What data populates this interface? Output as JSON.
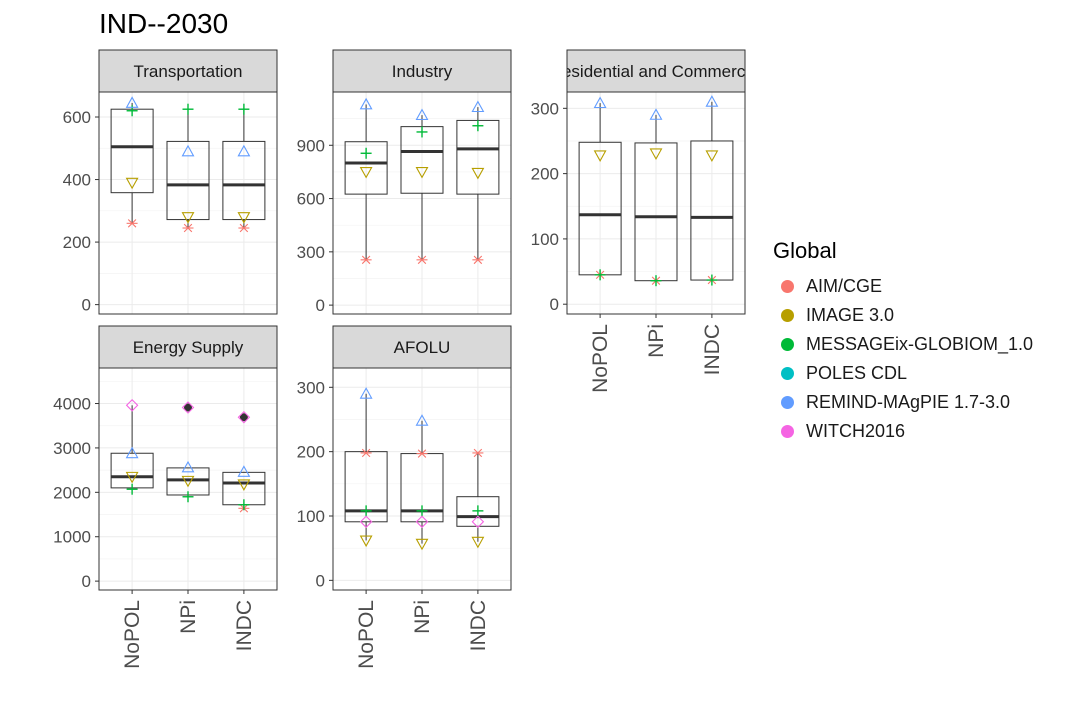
{
  "title": "IND--2030",
  "legend": {
    "title": "Global",
    "items": [
      {
        "label": "AIM/CGE",
        "color": "#F8766D",
        "shape": "asterisk"
      },
      {
        "label": "IMAGE 3.0",
        "color": "#B79F00",
        "shape": "triangle-down"
      },
      {
        "label": "MESSAGEix-GLOBIOM_1.0",
        "color": "#00BA38",
        "shape": "plus"
      },
      {
        "label": "POLES CDL",
        "color": "#00BFC4",
        "shape": "square"
      },
      {
        "label": "REMIND-MAgPIE 1.7-3.0",
        "color": "#619CFF",
        "shape": "triangle-up"
      },
      {
        "label": "WITCH2016",
        "color": "#F564E3",
        "shape": "diamond"
      }
    ]
  },
  "chart_data": [
    {
      "type": "box",
      "title": "Transportation",
      "categories": [
        "NoPOL",
        "NPi",
        "INDC"
      ],
      "ylim": [
        -30,
        680
      ],
      "yticks": [
        0,
        200,
        400,
        600
      ],
      "boxes": [
        {
          "lower": 260,
          "q1": 358,
          "median": 505,
          "q3": 625,
          "upper": 645
        },
        {
          "lower": 245,
          "q1": 272,
          "median": 383,
          "q3": 522,
          "upper": 625
        },
        {
          "lower": 245,
          "q1": 272,
          "median": 383,
          "q3": 522,
          "upper": 625
        }
      ],
      "points": [
        {
          "model": "AIM/CGE",
          "values": [
            260,
            245,
            245
          ]
        },
        {
          "model": "IMAGE 3.0",
          "values": [
            390,
            280,
            280
          ]
        },
        {
          "model": "MESSAGEix-GLOBIOM_1.0",
          "values": [
            620,
            625,
            625
          ]
        },
        {
          "model": "REMIND-MAgPIE 1.7-3.0",
          "values": [
            645,
            490,
            490
          ]
        }
      ]
    },
    {
      "type": "box",
      "title": "Industry",
      "categories": [
        "NoPOL",
        "NPi",
        "INDC"
      ],
      "ylim": [
        -50,
        1200
      ],
      "yticks": [
        0,
        300,
        600,
        900
      ],
      "boxes": [
        {
          "lower": 255,
          "q1": 625,
          "median": 800,
          "q3": 920,
          "upper": 1130
        },
        {
          "lower": 255,
          "q1": 630,
          "median": 865,
          "q3": 1005,
          "upper": 1070
        },
        {
          "lower": 255,
          "q1": 625,
          "median": 880,
          "q3": 1040,
          "upper": 1115
        }
      ],
      "points": [
        {
          "model": "AIM/CGE",
          "values": [
            255,
            255,
            255
          ]
        },
        {
          "model": "IMAGE 3.0",
          "values": [
            750,
            750,
            745
          ]
        },
        {
          "model": "MESSAGEix-GLOBIOM_1.0",
          "values": [
            855,
            975,
            1010
          ]
        },
        {
          "model": "REMIND-MAgPIE 1.7-3.0",
          "values": [
            1130,
            1070,
            1115
          ]
        }
      ]
    },
    {
      "type": "box",
      "title": "Residential and Commercial",
      "categories": [
        "NoPOL",
        "NPi",
        "INDC"
      ],
      "ylim": [
        -15,
        325
      ],
      "yticks": [
        0,
        100,
        200,
        300
      ],
      "boxes": [
        {
          "lower": 45,
          "q1": 45,
          "median": 137,
          "q3": 248,
          "upper": 308
        },
        {
          "lower": 36,
          "q1": 36,
          "median": 134,
          "q3": 247,
          "upper": 290
        },
        {
          "lower": 37,
          "q1": 37,
          "median": 133,
          "q3": 250,
          "upper": 310
        }
      ],
      "points": [
        {
          "model": "AIM/CGE",
          "values": [
            45,
            36,
            37
          ]
        },
        {
          "model": "IMAGE 3.0",
          "values": [
            228,
            231,
            228
          ]
        },
        {
          "model": "MESSAGEix-GLOBIOM_1.0",
          "values": [
            45,
            36,
            37
          ]
        },
        {
          "model": "REMIND-MAgPIE 1.7-3.0",
          "values": [
            308,
            290,
            310
          ]
        }
      ]
    },
    {
      "type": "box",
      "title": "Energy Supply",
      "categories": [
        "NoPOL",
        "NPi",
        "INDC"
      ],
      "ylim": [
        -200,
        4800
      ],
      "yticks": [
        0,
        1000,
        2000,
        3000,
        4000
      ],
      "boxes": [
        {
          "lower": 2070,
          "q1": 2100,
          "median": 2350,
          "q3": 2880,
          "upper": 3960
        },
        {
          "lower": 1900,
          "q1": 1940,
          "median": 2280,
          "q3": 2550,
          "upper": 2560
        },
        {
          "lower": 1640,
          "q1": 1720,
          "median": 2210,
          "q3": 2450,
          "upper": 2460
        }
      ],
      "outliers": [
        null,
        3910,
        3690
      ],
      "points": [
        {
          "model": "AIM/CGE",
          "values": [
            null,
            null,
            1640
          ]
        },
        {
          "model": "IMAGE 3.0",
          "values": [
            2350,
            2260,
            2180
          ]
        },
        {
          "model": "MESSAGEix-GLOBIOM_1.0",
          "values": [
            2070,
            1900,
            1720
          ]
        },
        {
          "model": "REMIND-MAgPIE 1.7-3.0",
          "values": [
            2880,
            2560,
            2460
          ]
        },
        {
          "model": "WITCH2016",
          "values": [
            3960,
            3910,
            3690
          ]
        }
      ]
    },
    {
      "type": "box",
      "title": "AFOLU",
      "categories": [
        "NoPOL",
        "NPi",
        "INDC"
      ],
      "ylim": [
        -15,
        330
      ],
      "yticks": [
        0,
        100,
        200,
        300
      ],
      "boxes": [
        {
          "lower": 62,
          "q1": 91,
          "median": 108,
          "q3": 200,
          "upper": 290
        },
        {
          "lower": 57,
          "q1": 91,
          "median": 108,
          "q3": 197,
          "upper": 248
        },
        {
          "lower": 60,
          "q1": 84,
          "median": 99,
          "q3": 130,
          "upper": 198
        }
      ],
      "points": [
        {
          "model": "AIM/CGE",
          "values": [
            198,
            197,
            198
          ]
        },
        {
          "model": "IMAGE 3.0",
          "values": [
            62,
            57,
            60
          ]
        },
        {
          "model": "MESSAGEix-GLOBIOM_1.0",
          "values": [
            108,
            108,
            108
          ]
        },
        {
          "model": "REMIND-MAgPIE 1.7-3.0",
          "values": [
            290,
            248,
            null
          ]
        },
        {
          "model": "WITCH2016",
          "values": [
            91,
            91,
            91
          ]
        }
      ]
    }
  ]
}
